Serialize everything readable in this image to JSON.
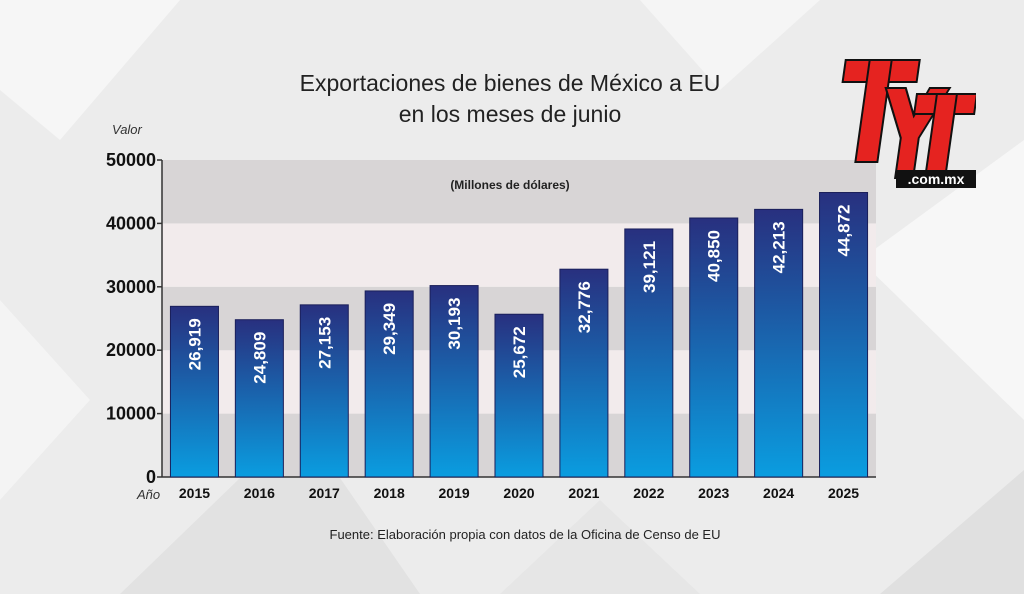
{
  "title": {
    "line1": "Exportaciones de bienes de México a EU",
    "line2": "en los meses de junio"
  },
  "source": "Fuente: Elaboración propia con datos de la Oficina de Censo de EU",
  "logo": {
    "brand": "TyT",
    "domain": ".com.mx",
    "icon": "tyt-logo-icon"
  },
  "colors": {
    "bar_top": "#28307f",
    "bar_bottom": "#0a9de0",
    "band_dark": "#d8d5d6",
    "band_light": "#f2ebec",
    "logo_red": "#e52320"
  },
  "chart_data": {
    "type": "bar",
    "ylabel": "Valor",
    "xlabel": "Año",
    "unit_note": "(Millones de dólares)",
    "categories": [
      "2015",
      "2016",
      "2017",
      "2018",
      "2019",
      "2020",
      "2021",
      "2022",
      "2023",
      "2024",
      "2025"
    ],
    "values": [
      26919,
      24809,
      27153,
      29349,
      30193,
      25672,
      32776,
      39121,
      40850,
      42213,
      44872
    ],
    "value_labels": [
      "26,919",
      "24,809",
      "27,153",
      "29,349",
      "30,193",
      "25,672",
      "32,776",
      "39,121",
      "40,850",
      "42,213",
      "44,872"
    ],
    "ylim": [
      0,
      50000
    ],
    "yticks": [
      0,
      10000,
      20000,
      30000,
      40000,
      50000
    ],
    "ytick_labels": [
      "0",
      "10000",
      "20000",
      "30000",
      "40000",
      "50000"
    ],
    "grid": "alternating horizontal bands",
    "legend": "none"
  }
}
